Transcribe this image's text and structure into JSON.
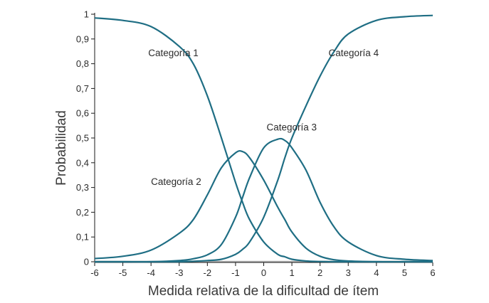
{
  "chart_data": {
    "type": "line",
    "xlabel": "Medida relativa de la dificultad de ítem",
    "ylabel": "Probabilidad",
    "xlim": [
      -6,
      6
    ],
    "ylim": [
      0,
      1
    ],
    "grid": false,
    "x_ticks": [
      -6,
      -5,
      -4,
      -3,
      -2,
      -1,
      0,
      1,
      2,
      3,
      4,
      5,
      6
    ],
    "x_tick_labels": [
      "-6",
      "-5",
      "-4",
      "-3",
      "-2",
      "-1",
      "0",
      "1",
      "2",
      "3",
      "4",
      "5",
      "6"
    ],
    "y_ticks": [
      0,
      0.1,
      0.2,
      0.3,
      0.4,
      0.5,
      0.6,
      0.7,
      0.8,
      0.9,
      1
    ],
    "y_tick_labels": [
      "0",
      "0,1",
      "0,2",
      "0,3",
      "0,4",
      "0,5",
      "0,6",
      "0,7",
      "0,8",
      "0,9",
      "1"
    ],
    "x": [
      -6,
      -5,
      -4,
      -3,
      -2.5,
      -2,
      -1.5,
      -1,
      -0.75,
      -0.5,
      0,
      0.5,
      0.75,
      1,
      1.5,
      2,
      2.5,
      3,
      4,
      5,
      6
    ],
    "series": [
      {
        "name": "Categoría 1",
        "label_at": [
          -4.1,
          0.83
        ],
        "values": [
          0.985,
          0.975,
          0.95,
          0.87,
          0.8,
          0.67,
          0.5,
          0.32,
          0.24,
          0.17,
          0.08,
          0.03,
          0.02,
          0.01,
          0.003,
          0.001,
          0,
          0,
          0,
          0,
          0
        ]
      },
      {
        "name": "Categoría 2",
        "label_at": [
          -4.0,
          0.31
        ],
        "values": [
          0.013,
          0.022,
          0.047,
          0.115,
          0.17,
          0.27,
          0.38,
          0.44,
          0.445,
          0.42,
          0.33,
          0.22,
          0.17,
          0.12,
          0.055,
          0.022,
          0.008,
          0.003,
          0,
          0,
          0
        ]
      },
      {
        "name": "Categoría 3",
        "label_at": [
          0.1,
          0.53
        ],
        "values": [
          0,
          0,
          0,
          0.005,
          0.012,
          0.028,
          0.07,
          0.18,
          0.26,
          0.34,
          0.46,
          0.495,
          0.49,
          0.46,
          0.37,
          0.24,
          0.14,
          0.08,
          0.025,
          0.01,
          0.005
        ]
      },
      {
        "name": "Categoría 4",
        "label_at": [
          2.3,
          0.83
        ],
        "values": [
          0,
          0,
          0,
          0,
          0.002,
          0.005,
          0.01,
          0.03,
          0.05,
          0.08,
          0.18,
          0.33,
          0.42,
          0.5,
          0.63,
          0.75,
          0.85,
          0.92,
          0.975,
          0.99,
          0.995
        ]
      }
    ]
  },
  "colors": {
    "curve": "#1f6e84",
    "axis": "#1a1a1a",
    "baseline": "#b0b0b0"
  }
}
